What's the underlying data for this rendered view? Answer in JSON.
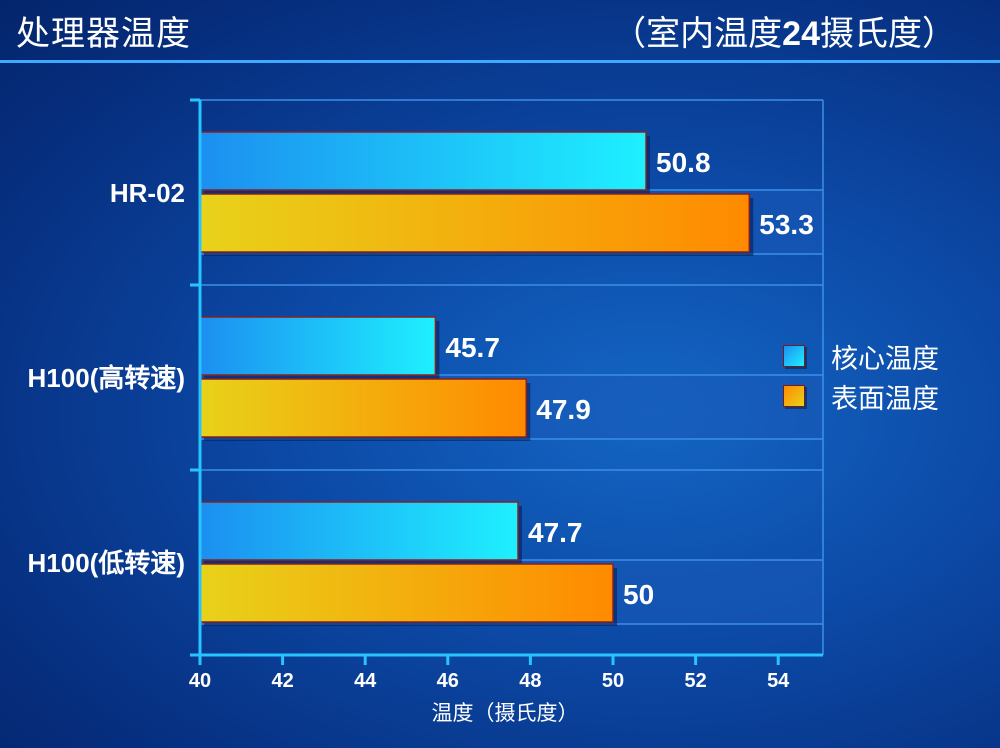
{
  "header": {
    "title": "处理器温度",
    "subtitle_prefix": "（室内温度",
    "subtitle_number": "24",
    "subtitle_suffix": "摄氏度）"
  },
  "colors": {
    "core_start": "#1c8ff0",
    "core_end": "#1ef0ff",
    "surface_start": "#e8d21a",
    "surface_end": "#ff8a00",
    "plot_band": "#1a5ab8"
  },
  "chart_data": {
    "type": "bar",
    "orientation": "horizontal",
    "categories": [
      "HR-02",
      "H100(高转速)",
      "H100(低转速)"
    ],
    "series": [
      {
        "name": "核心温度",
        "values": [
          50.8,
          45.7,
          47.7
        ]
      },
      {
        "name": "表面温度",
        "values": [
          53.3,
          47.9,
          50
        ]
      }
    ],
    "data_labels": [
      [
        "50.8",
        "45.7",
        "47.7"
      ],
      [
        "53.3",
        "47.9",
        "50"
      ]
    ],
    "xlabel": "温度（摄氏度）",
    "ylabel": "",
    "xlim": [
      40,
      55
    ],
    "xticks": [
      40,
      42,
      44,
      46,
      48,
      50,
      52,
      54
    ],
    "legend_position": "right",
    "grid": true
  }
}
